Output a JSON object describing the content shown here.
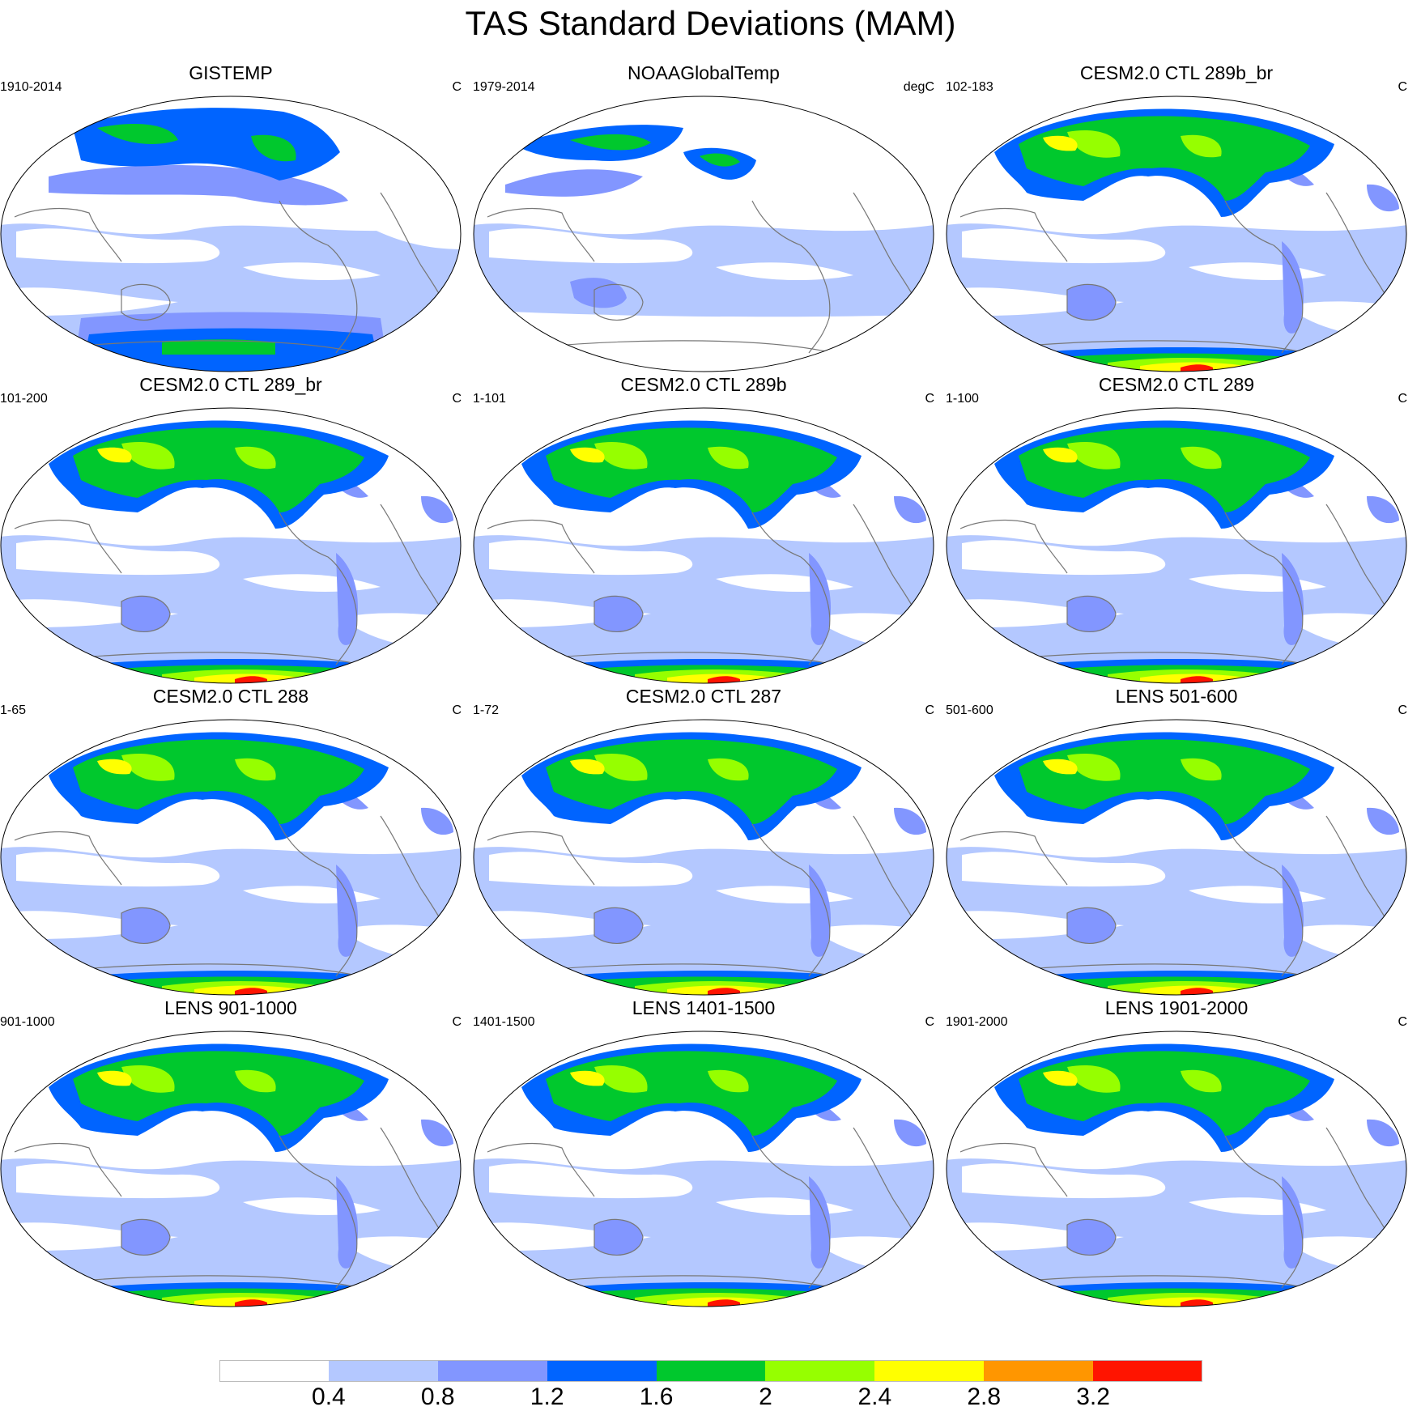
{
  "title": "TAS Standard Deviations (MAM)",
  "panels": [
    {
      "title": "GISTEMP",
      "left": "1910-2014",
      "right": "C",
      "variant": "obs"
    },
    {
      "title": "NOAAGlobalTemp",
      "left": "1979-2014",
      "right": "degC",
      "variant": "noaa"
    },
    {
      "title": "CESM2.0 CTL 289b_br",
      "left": "102-183",
      "right": "C",
      "variant": "model"
    },
    {
      "title": "CESM2.0 CTL 289_br",
      "left": "101-200",
      "right": "C",
      "variant": "model"
    },
    {
      "title": "CESM2.0 CTL 289b",
      "left": "1-101",
      "right": "C",
      "variant": "model"
    },
    {
      "title": "CESM2.0 CTL 289",
      "left": "1-100",
      "right": "C",
      "variant": "model"
    },
    {
      "title": "CESM2.0 CTL 288",
      "left": "1-65",
      "right": "C",
      "variant": "model"
    },
    {
      "title": "CESM2.0 CTL 287",
      "left": "1-72",
      "right": "C",
      "variant": "model"
    },
    {
      "title": "LENS 501-600",
      "left": "501-600",
      "right": "C",
      "variant": "model"
    },
    {
      "title": "LENS 901-1000",
      "left": "901-1000",
      "right": "C",
      "variant": "model"
    },
    {
      "title": "LENS 1401-1500",
      "left": "1401-1500",
      "right": "C",
      "variant": "model"
    },
    {
      "title": "LENS 1901-2000",
      "left": "1901-2000",
      "right": "C",
      "variant": "model"
    }
  ],
  "colorbar": {
    "colors": [
      "#ffffff",
      "#b4c8ff",
      "#8296ff",
      "#0064ff",
      "#00c82d",
      "#96ff00",
      "#ffff00",
      "#ff9600",
      "#ff1400"
    ],
    "labels": [
      "0.4",
      "0.8",
      "1.2",
      "1.6",
      "2",
      "2.4",
      "2.8",
      "3.2"
    ]
  }
}
